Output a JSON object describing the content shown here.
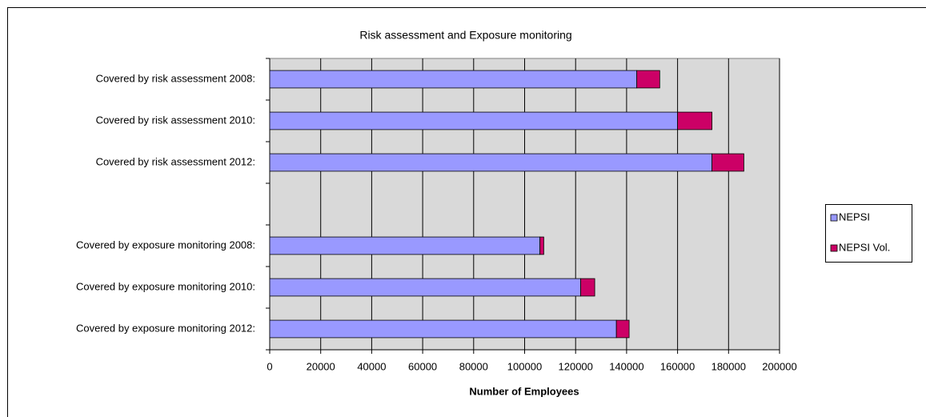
{
  "chart_data": {
    "type": "stacked_barh",
    "title": "Risk assessment and Exposure monitoring",
    "x_label": "Number of Employees",
    "categories": [
      "Covered by risk assessment 2008:",
      "Covered by risk assessment 2010:",
      "Covered by risk assessment 2012:",
      null,
      "Covered by exposure monitoring 2008:",
      "Covered by exposure monitoring 2010:",
      "Covered by exposure monitoring 2012:"
    ],
    "series": [
      {
        "name": "NEPSI",
        "color": "#9999ff",
        "values": [
          144000,
          160000,
          173500,
          null,
          106000,
          122000,
          136000
        ]
      },
      {
        "name": "NEPSI Vol.",
        "color": "#cc0066",
        "values": [
          9000,
          13500,
          12500,
          null,
          1500,
          5500,
          5000
        ]
      }
    ],
    "xlim": [
      0,
      200000
    ],
    "xticks": [
      0,
      20000,
      40000,
      60000,
      80000,
      100000,
      120000,
      140000,
      160000,
      180000,
      200000
    ],
    "grid": true,
    "legend": "right"
  }
}
